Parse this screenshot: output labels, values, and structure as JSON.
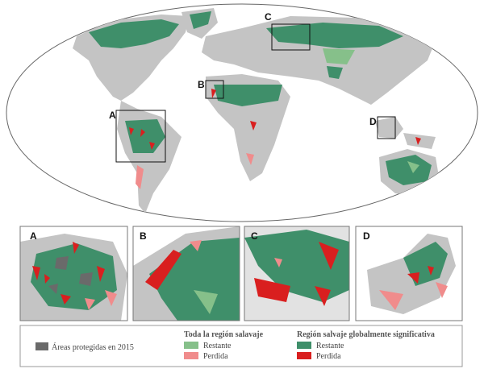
{
  "map": {
    "box_labels": [
      "A",
      "B",
      "C",
      "D"
    ]
  },
  "insets": [
    {
      "label": "A"
    },
    {
      "label": "B"
    },
    {
      "label": "C"
    },
    {
      "label": "D"
    }
  ],
  "legend": {
    "protected": "Áreas protegidas en 2015",
    "all_wilderness": {
      "title": "Toda la región salavaje",
      "remaining": "Restante",
      "lost": "Perdida"
    },
    "global_wilderness": {
      "title": "Región salvaje globalmente significativa",
      "remaining": "Restante",
      "lost": "Perdida"
    }
  }
}
